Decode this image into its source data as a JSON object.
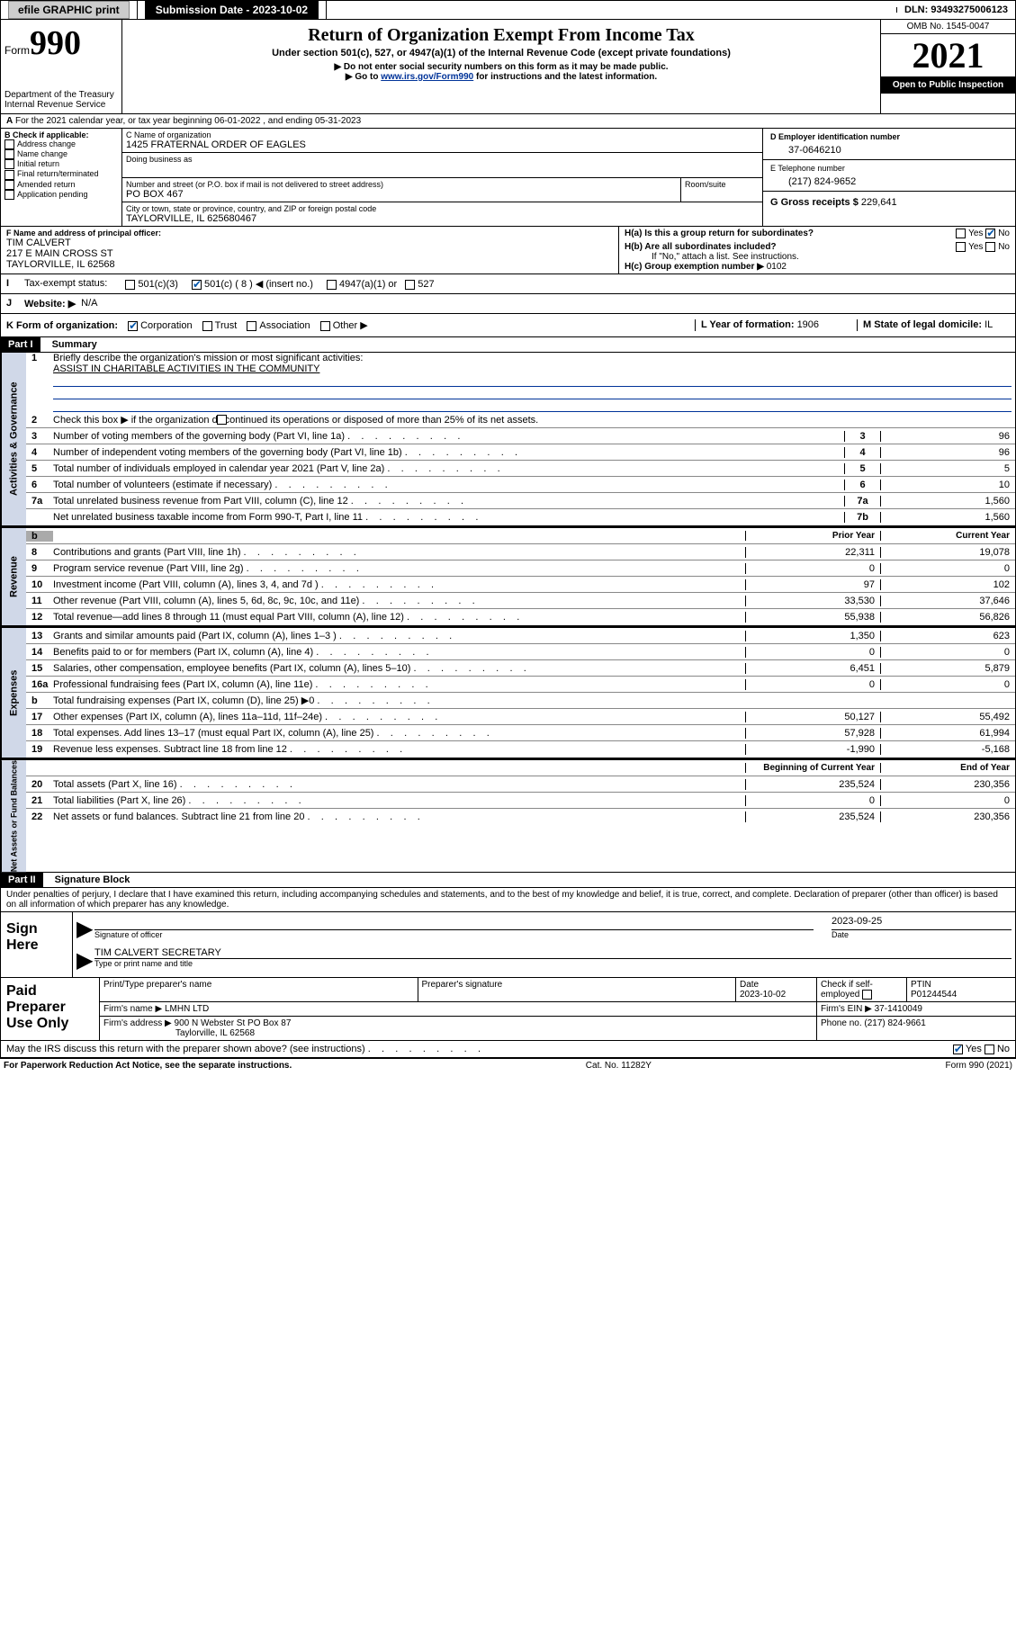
{
  "topbar": {
    "efile": "efile GRAPHIC print",
    "sub_label": "Submission Date - 2023-10-02",
    "dln": "DLN: 93493275006123"
  },
  "header": {
    "form_word": "Form",
    "form_no": "990",
    "dept": "Department of the Treasury",
    "irs": "Internal Revenue Service",
    "title": "Return of Organization Exempt From Income Tax",
    "sub1": "Under section 501(c), 527, or 4947(a)(1) of the Internal Revenue Code (except private foundations)",
    "sub2": "▶ Do not enter social security numbers on this form as it may be made public.",
    "sub3_pre": "▶ Go to ",
    "sub3_link": "www.irs.gov/Form990",
    "sub3_post": " for instructions and the latest information.",
    "omb": "OMB No. 1545-0047",
    "year": "2021",
    "open": "Open to Public Inspection"
  },
  "periodA": "For the 2021 calendar year, or tax year beginning 06-01-2022    , and ending 05-31-2023",
  "sectionB": {
    "label": "B Check if applicable:",
    "items": [
      "Address change",
      "Name change",
      "Initial return",
      "Final return/terminated",
      "Amended return",
      "Application pending"
    ]
  },
  "sectionC": {
    "name_label": "C Name of organization",
    "name": "1425 FRATERNAL ORDER OF EAGLES",
    "dba_label": "Doing business as",
    "addr_label": "Number and street (or P.O. box if mail is not delivered to street address)",
    "room_label": "Room/suite",
    "addr": "PO BOX 467",
    "city_label": "City or town, state or province, country, and ZIP or foreign postal code",
    "city": "TAYLORVILLE, IL  625680467"
  },
  "sectionD": {
    "label": "D Employer identification number",
    "val": "37-0646210"
  },
  "sectionE": {
    "label": "E Telephone number",
    "val": "(217) 824-9652"
  },
  "sectionG": {
    "label": "G Gross receipts $ ",
    "val": "229,641"
  },
  "sectionF": {
    "label": "F Name and address of principal officer:",
    "name": "TIM CALVERT",
    "addr1": "217 E MAIN CROSS ST",
    "addr2": "TAYLORVILLE, IL  62568"
  },
  "sectionH": {
    "a": "H(a)  Is this a group return for subordinates?",
    "b": "H(b)  Are all subordinates included?",
    "bnote": "If \"No,\" attach a list. See instructions.",
    "c": "H(c)  Group exemption number ▶",
    "cval": "0102",
    "yes": "Yes",
    "no": "No"
  },
  "sectionI": {
    "label": "Tax-exempt status:",
    "o1": "501(c)(3)",
    "o2": "501(c) ( 8 ) ◀ (insert no.)",
    "o3": "4947(a)(1) or",
    "o4": "527"
  },
  "sectionJ": {
    "label": "Website: ▶",
    "val": "N/A"
  },
  "sectionK": {
    "label": "K Form of organization:",
    "o1": "Corporation",
    "o2": "Trust",
    "o3": "Association",
    "o4": "Other ▶"
  },
  "sectionL": {
    "label": "L Year of formation: ",
    "val": "1906"
  },
  "sectionM": {
    "label": "M State of legal domicile: ",
    "val": "IL"
  },
  "part1": {
    "header": "Part I",
    "title": "Summary",
    "q1": "Briefly describe the organization's mission or most significant activities:",
    "a1": "ASSIST IN CHARITABLE ACTIVITIES IN THE COMMUNITY",
    "q2": "Check this box ▶       if the organization discontinued its operations or disposed of more than 25% of its net assets.",
    "rows_gov": [
      {
        "n": "3",
        "d": "Number of voting members of the governing body (Part VI, line 1a)",
        "box": "3",
        "v": "96"
      },
      {
        "n": "4",
        "d": "Number of independent voting members of the governing body (Part VI, line 1b)",
        "box": "4",
        "v": "96"
      },
      {
        "n": "5",
        "d": "Total number of individuals employed in calendar year 2021 (Part V, line 2a)",
        "box": "5",
        "v": "5"
      },
      {
        "n": "6",
        "d": "Total number of volunteers (estimate if necessary)",
        "box": "6",
        "v": "10"
      },
      {
        "n": "7a",
        "d": "Total unrelated business revenue from Part VIII, column (C), line 12",
        "box": "7a",
        "v": "1,560"
      },
      {
        "n": "",
        "d": "Net unrelated business taxable income from Form 990-T, Part I, line 11",
        "box": "7b",
        "v": "1,560"
      }
    ],
    "col_prior": "Prior Year",
    "col_curr": "Current Year",
    "rows_rev": [
      {
        "n": "8",
        "d": "Contributions and grants (Part VIII, line 1h)",
        "p": "22,311",
        "c": "19,078"
      },
      {
        "n": "9",
        "d": "Program service revenue (Part VIII, line 2g)",
        "p": "0",
        "c": "0"
      },
      {
        "n": "10",
        "d": "Investment income (Part VIII, column (A), lines 3, 4, and 7d )",
        "p": "97",
        "c": "102"
      },
      {
        "n": "11",
        "d": "Other revenue (Part VIII, column (A), lines 5, 6d, 8c, 9c, 10c, and 11e)",
        "p": "33,530",
        "c": "37,646"
      },
      {
        "n": "12",
        "d": "Total revenue—add lines 8 through 11 (must equal Part VIII, column (A), line 12)",
        "p": "55,938",
        "c": "56,826"
      }
    ],
    "rows_exp": [
      {
        "n": "13",
        "d": "Grants and similar amounts paid (Part IX, column (A), lines 1–3 )",
        "p": "1,350",
        "c": "623"
      },
      {
        "n": "14",
        "d": "Benefits paid to or for members (Part IX, column (A), line 4)",
        "p": "0",
        "c": "0"
      },
      {
        "n": "15",
        "d": "Salaries, other compensation, employee benefits (Part IX, column (A), lines 5–10)",
        "p": "6,451",
        "c": "5,879"
      },
      {
        "n": "16a",
        "d": "Professional fundraising fees (Part IX, column (A), line 11e)",
        "p": "0",
        "c": "0"
      },
      {
        "n": "b",
        "d": "Total fundraising expenses (Part IX, column (D), line 25) ▶0",
        "p": "",
        "c": "",
        "gray": true
      },
      {
        "n": "17",
        "d": "Other expenses (Part IX, column (A), lines 11a–11d, 11f–24e)",
        "p": "50,127",
        "c": "55,492"
      },
      {
        "n": "18",
        "d": "Total expenses. Add lines 13–17 (must equal Part IX, column (A), line 25)",
        "p": "57,928",
        "c": "61,994"
      },
      {
        "n": "19",
        "d": "Revenue less expenses. Subtract line 18 from line 12",
        "p": "-1,990",
        "c": "-5,168"
      }
    ],
    "col_beg": "Beginning of Current Year",
    "col_end": "End of Year",
    "rows_net": [
      {
        "n": "20",
        "d": "Total assets (Part X, line 16)",
        "p": "235,524",
        "c": "230,356"
      },
      {
        "n": "21",
        "d": "Total liabilities (Part X, line 26)",
        "p": "0",
        "c": "0"
      },
      {
        "n": "22",
        "d": "Net assets or fund balances. Subtract line 21 from line 20",
        "p": "235,524",
        "c": "230,356"
      }
    ],
    "side_gov": "Activities & Governance",
    "side_rev": "Revenue",
    "side_exp": "Expenses",
    "side_net": "Net Assets or Fund Balances"
  },
  "part2": {
    "header": "Part II",
    "title": "Signature Block",
    "decl": "Under penalties of perjury, I declare that I have examined this return, including accompanying schedules and statements, and to the best of my knowledge and belief, it is true, correct, and complete. Declaration of preparer (other than officer) is based on all information of which preparer has any knowledge.",
    "sign_here": "Sign Here",
    "sig_officer": "Signature of officer",
    "date": "Date",
    "date_val": "2023-09-25",
    "officer_name": "TIM CALVERT  SECRETARY",
    "type_name": "Type or print name and title",
    "paid": "Paid Preparer Use Only",
    "prep_name_lbl": "Print/Type preparer's name",
    "prep_sig_lbl": "Preparer's signature",
    "prep_date_lbl": "Date",
    "prep_date": "2023-10-02",
    "check_lbl": "Check         if self-employed",
    "ptin_lbl": "PTIN",
    "ptin": "P01244544",
    "firm_name_lbl": "Firm's name     ▶",
    "firm_name": "LMHN LTD",
    "firm_ein_lbl": "Firm's EIN ▶",
    "firm_ein": "37-1410049",
    "firm_addr_lbl": "Firm's address ▶",
    "firm_addr1": "900 N Webster St PO Box 87",
    "firm_addr2": "Taylorville, IL  62568",
    "phone_lbl": "Phone no. ",
    "phone": "(217) 824-9661",
    "discuss": "May the IRS discuss this return with the preparer shown above? (see instructions)"
  },
  "footer": {
    "left": "For Paperwork Reduction Act Notice, see the separate instructions.",
    "mid": "Cat. No. 11282Y",
    "right": "Form 990 (2021)"
  }
}
